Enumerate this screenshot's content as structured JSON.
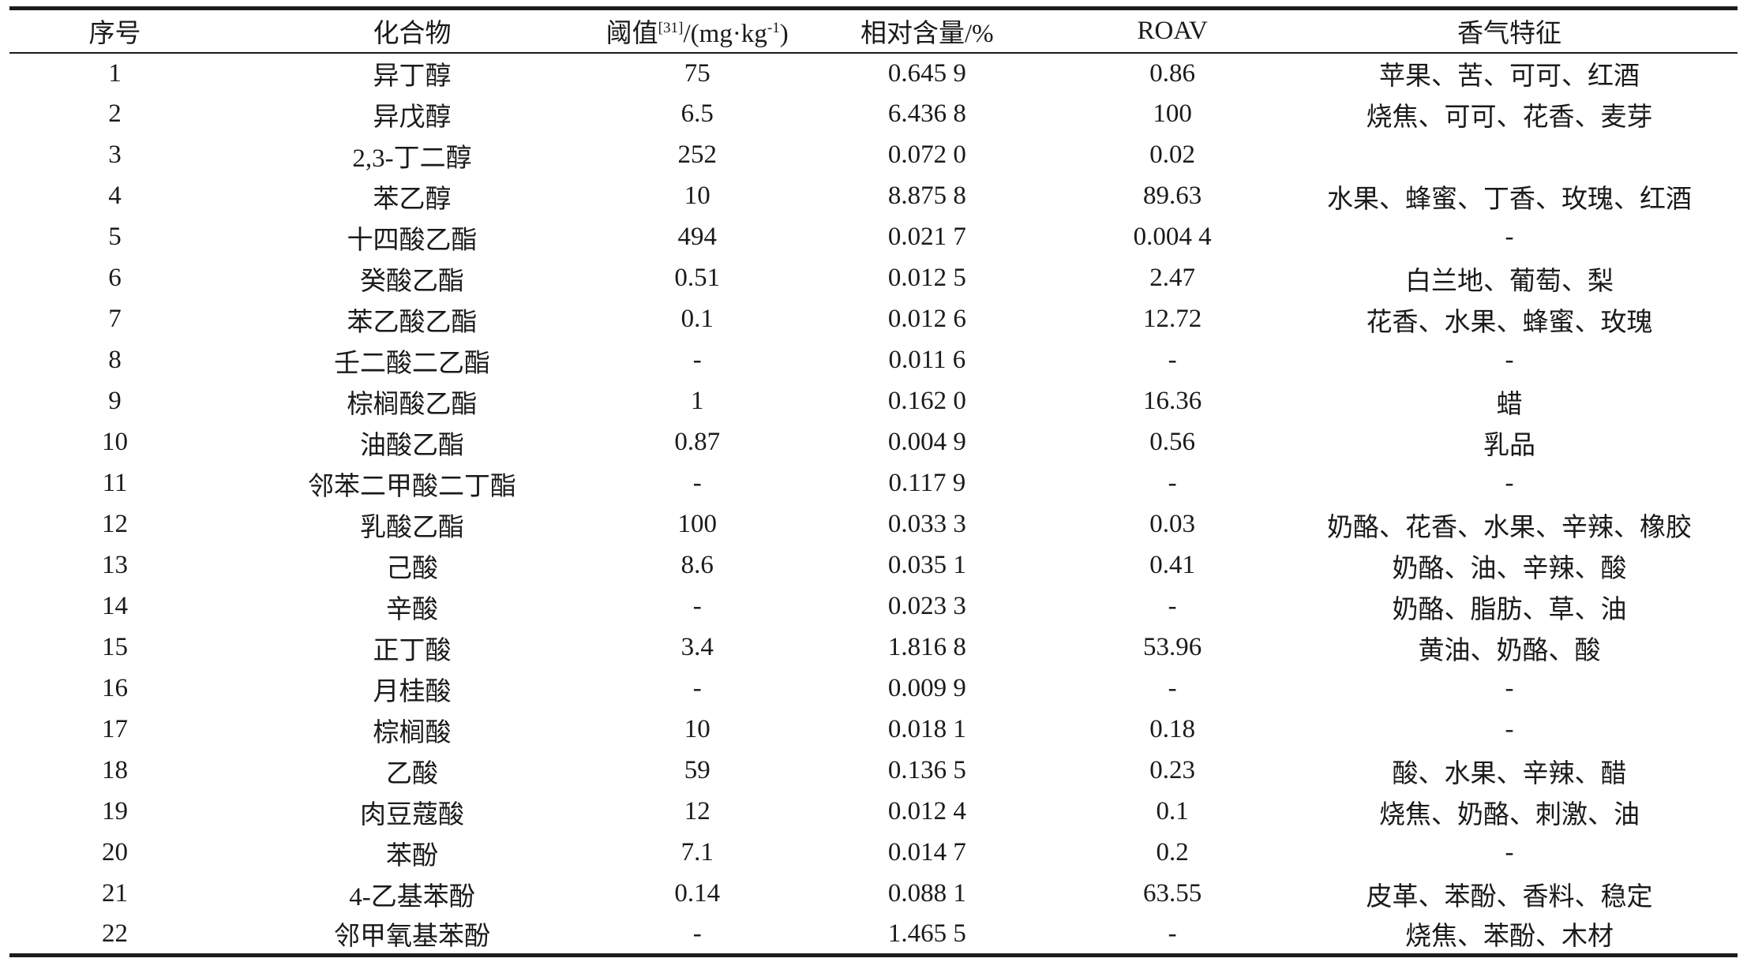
{
  "table": {
    "headers": {
      "no": "序号",
      "compound": "化合物",
      "threshold": {
        "base": "阈值",
        "ref_sup": "[31]",
        "unit_open": "/(mg·kg",
        "unit_sup": "-1",
        "unit_close": ")"
      },
      "relative_content": "相对含量/%",
      "roav": "ROAV",
      "aroma": "香气特征"
    },
    "rows": [
      {
        "no": "1",
        "compound": "异丁醇",
        "threshold": "75",
        "relative_content": "0.645 9",
        "roav": "0.86",
        "aroma": "苹果、苦、可可、红酒"
      },
      {
        "no": "2",
        "compound": "异戊醇",
        "threshold": "6.5",
        "relative_content": "6.436 8",
        "roav": "100",
        "aroma": "烧焦、可可、花香、麦芽"
      },
      {
        "no": "3",
        "compound": "2,3-丁二醇",
        "threshold": "252",
        "relative_content": "0.072 0",
        "roav": "0.02",
        "aroma": ""
      },
      {
        "no": "4",
        "compound": "苯乙醇",
        "threshold": "10",
        "relative_content": "8.875 8",
        "roav": "89.63",
        "aroma": "水果、蜂蜜、丁香、玫瑰、红酒"
      },
      {
        "no": "5",
        "compound": "十四酸乙酯",
        "threshold": "494",
        "relative_content": "0.021 7",
        "roav": "0.004 4",
        "aroma": "-"
      },
      {
        "no": "6",
        "compound": "癸酸乙酯",
        "threshold": "0.51",
        "relative_content": "0.012 5",
        "roav": "2.47",
        "aroma": "白兰地、葡萄、梨"
      },
      {
        "no": "7",
        "compound": "苯乙酸乙酯",
        "threshold": "0.1",
        "relative_content": "0.012 6",
        "roav": "12.72",
        "aroma": "花香、水果、蜂蜜、玫瑰"
      },
      {
        "no": "8",
        "compound": "壬二酸二乙酯",
        "threshold": "-",
        "relative_content": "0.011 6",
        "roav": "-",
        "aroma": "-"
      },
      {
        "no": "9",
        "compound": "棕榈酸乙酯",
        "threshold": "1",
        "relative_content": "0.162 0",
        "roav": "16.36",
        "aroma": "蜡"
      },
      {
        "no": "10",
        "compound": "油酸乙酯",
        "threshold": "0.87",
        "relative_content": "0.004 9",
        "roav": "0.56",
        "aroma": "乳品"
      },
      {
        "no": "11",
        "compound": "邻苯二甲酸二丁酯",
        "threshold": "-",
        "relative_content": "0.117 9",
        "roav": "-",
        "aroma": "-"
      },
      {
        "no": "12",
        "compound": "乳酸乙酯",
        "threshold": "100",
        "relative_content": "0.033 3",
        "roav": "0.03",
        "aroma": "奶酪、花香、水果、辛辣、橡胶"
      },
      {
        "no": "13",
        "compound": "己酸",
        "threshold": "8.6",
        "relative_content": "0.035 1",
        "roav": "0.41",
        "aroma": "奶酪、油、辛辣、酸"
      },
      {
        "no": "14",
        "compound": "辛酸",
        "threshold": "-",
        "relative_content": "0.023 3",
        "roav": "-",
        "aroma": "奶酪、脂肪、草、油"
      },
      {
        "no": "15",
        "compound": "正丁酸",
        "threshold": "3.4",
        "relative_content": "1.816 8",
        "roav": "53.96",
        "aroma": "黄油、奶酪、酸"
      },
      {
        "no": "16",
        "compound": "月桂酸",
        "threshold": "-",
        "relative_content": "0.009 9",
        "roav": "-",
        "aroma": "-"
      },
      {
        "no": "17",
        "compound": "棕榈酸",
        "threshold": "10",
        "relative_content": "0.018 1",
        "roav": "0.18",
        "aroma": "-"
      },
      {
        "no": "18",
        "compound": "乙酸",
        "threshold": "59",
        "relative_content": "0.136 5",
        "roav": "0.23",
        "aroma": "酸、水果、辛辣、醋"
      },
      {
        "no": "19",
        "compound": "肉豆蔻酸",
        "threshold": "12",
        "relative_content": "0.012 4",
        "roav": "0.1",
        "aroma": "烧焦、奶酪、刺激、油"
      },
      {
        "no": "20",
        "compound": "苯酚",
        "threshold": "7.1",
        "relative_content": "0.014 7",
        "roav": "0.2",
        "aroma": "-"
      },
      {
        "no": "21",
        "compound": "4-乙基苯酚",
        "threshold": "0.14",
        "relative_content": "0.088 1",
        "roav": "63.55",
        "aroma": "皮革、苯酚、香料、稳定"
      },
      {
        "no": "22",
        "compound": "邻甲氧基苯酚",
        "threshold": "-",
        "relative_content": "1.465 5",
        "roav": "-",
        "aroma": "烧焦、苯酚、木材"
      }
    ]
  }
}
